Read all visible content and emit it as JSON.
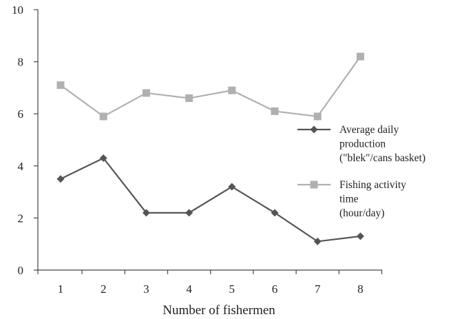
{
  "chart_data": {
    "type": "line",
    "categories": [
      "1",
      "2",
      "3",
      "4",
      "5",
      "6",
      "7",
      "8"
    ],
    "xlabel": "Number of fishermen",
    "ylabel": "",
    "ylim": [
      0,
      10
    ],
    "yticks": [
      "0",
      "2",
      "4",
      "6",
      "8",
      "10"
    ],
    "grid": false,
    "legend_position": "right",
    "series": [
      {
        "legend_lines": [
          "Average daily",
          "production",
          "(\"blek\"/cans basket)"
        ],
        "marker": "diamond",
        "color": "#555555",
        "values": [
          3.5,
          4.3,
          2.2,
          2.2,
          3.2,
          2.2,
          1.1,
          1.3
        ]
      },
      {
        "legend_lines": [
          "Fishing activity",
          "time",
          "(hour/day)"
        ],
        "marker": "square",
        "color": "#b0b0b0",
        "values": [
          7.1,
          5.9,
          6.8,
          6.6,
          6.9,
          6.1,
          5.9,
          8.2
        ]
      }
    ]
  }
}
